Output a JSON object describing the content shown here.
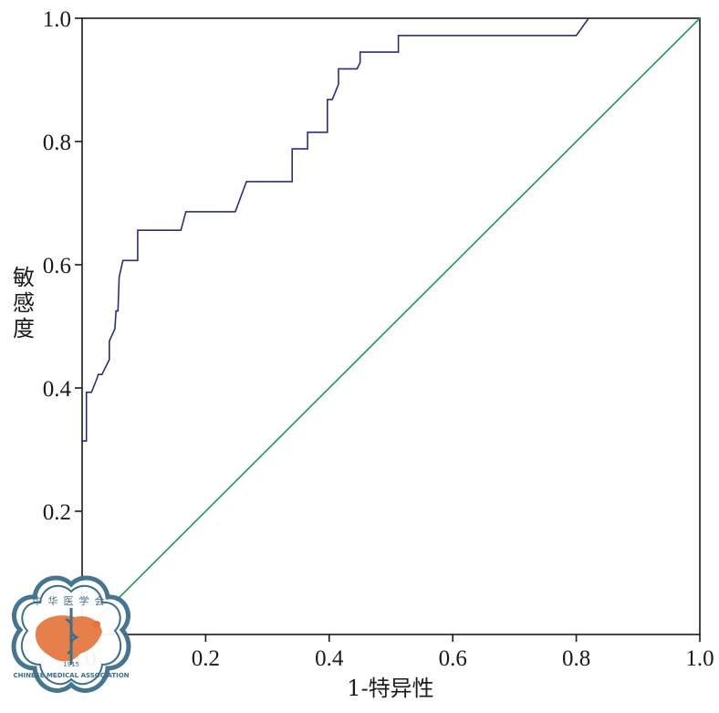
{
  "chart_data": {
    "type": "line",
    "title": "",
    "xlabel": "1-特异性",
    "ylabel": "敏感度",
    "xlim": [
      0,
      1
    ],
    "ylim": [
      0,
      1
    ],
    "x_ticks": [
      "0.0",
      "0.2",
      "0.4",
      "0.6",
      "0.8",
      "1.0"
    ],
    "y_ticks": [
      "0.0",
      "0.2",
      "0.4",
      "0.6",
      "0.8",
      "1.0"
    ],
    "grid": false,
    "legend": "none",
    "series": [
      {
        "color": "#2b2f7a",
        "x": [
          0,
          0.007,
          0.007,
          0.015,
          0.024,
          0.026,
          0.032,
          0.044,
          0.044,
          0.053,
          0.055,
          0.058,
          0.06,
          0.066,
          0.09,
          0.09,
          0.16,
          0.168,
          0.248,
          0.266,
          0.34,
          0.34,
          0.365,
          0.365,
          0.397,
          0.397,
          0.405,
          0.415,
          0.415,
          0.445,
          0.45,
          0.45,
          0.512,
          0.512,
          0.8,
          0.82
        ],
        "y": [
          0.314,
          0.314,
          0.393,
          0.393,
          0.415,
          0.422,
          0.422,
          0.446,
          0.476,
          0.496,
          0.525,
          0.525,
          0.58,
          0.607,
          0.607,
          0.656,
          0.656,
          0.686,
          0.686,
          0.735,
          0.735,
          0.788,
          0.788,
          0.815,
          0.815,
          0.868,
          0.868,
          0.893,
          0.918,
          0.918,
          0.928,
          0.945,
          0.945,
          0.972,
          0.972,
          1.0
        ]
      },
      {
        "color": "#1a9a4b",
        "x": [
          0,
          1
        ],
        "y": [
          0,
          1
        ]
      }
    ]
  },
  "watermark": {
    "top_text": "中华医学会",
    "bottom_text": "CHINESE MEDICAL ASSOCIATION",
    "year": "1915"
  }
}
